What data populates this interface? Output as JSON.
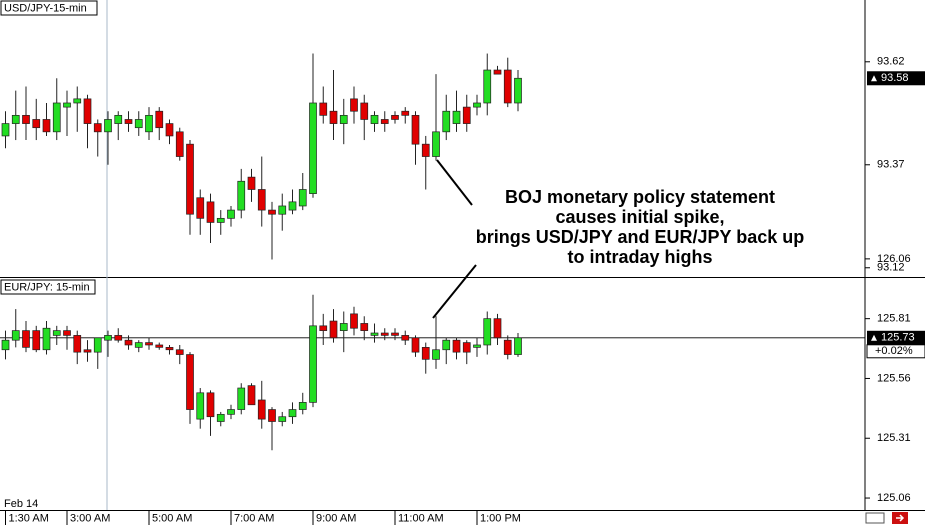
{
  "chart_data": [
    {
      "type": "candlestick",
      "title": "USD/JPY-15-min",
      "ylim": [
        93.1,
        93.77
      ],
      "yticks": [
        93.12,
        93.37,
        93.62
      ],
      "up_color": "#22dd22",
      "down_color": "#e00000",
      "last": 93.58,
      "price_line": false,
      "open": [
        93.44,
        93.47,
        93.49,
        93.48,
        93.48,
        93.45,
        93.51,
        93.52,
        93.53,
        93.47,
        93.45,
        93.47,
        93.48,
        93.46,
        93.45,
        93.5,
        93.47,
        93.45,
        93.42,
        93.29,
        93.28,
        93.23,
        93.24,
        93.26,
        93.34,
        93.31,
        93.26,
        93.25,
        93.26,
        93.27,
        93.3,
        93.52,
        93.5,
        93.47,
        93.53,
        93.52,
        93.47,
        93.48,
        93.49,
        93.5,
        93.49,
        93.42,
        93.39,
        93.45,
        93.47,
        93.51,
        93.51,
        93.52,
        93.6,
        93.6,
        93.52
      ],
      "high": [
        93.5,
        93.55,
        93.56,
        93.53,
        93.52,
        93.58,
        93.55,
        93.56,
        93.54,
        93.48,
        93.5,
        93.5,
        93.5,
        93.5,
        93.51,
        93.51,
        93.48,
        93.46,
        93.43,
        93.31,
        93.3,
        93.26,
        93.27,
        93.36,
        93.36,
        93.39,
        93.28,
        93.3,
        93.31,
        93.35,
        93.64,
        93.56,
        93.6,
        93.53,
        93.56,
        93.54,
        93.5,
        93.5,
        93.5,
        93.51,
        93.5,
        93.44,
        93.59,
        93.54,
        93.55,
        93.54,
        93.54,
        93.64,
        93.61,
        93.63,
        93.6
      ],
      "low": [
        93.41,
        93.43,
        93.43,
        93.43,
        93.44,
        93.43,
        93.44,
        93.45,
        93.41,
        93.39,
        93.37,
        93.43,
        93.45,
        93.44,
        93.43,
        93.43,
        93.42,
        93.38,
        93.2,
        93.2,
        93.18,
        93.2,
        93.22,
        93.24,
        93.28,
        93.22,
        93.14,
        93.21,
        93.25,
        93.26,
        93.29,
        93.47,
        93.43,
        93.42,
        93.47,
        93.43,
        93.45,
        93.45,
        93.47,
        93.47,
        93.37,
        93.31,
        93.38,
        93.43,
        93.45,
        93.45,
        93.49,
        93.49,
        93.59,
        93.51,
        93.5
      ],
      "close": [
        93.47,
        93.49,
        93.47,
        93.46,
        93.45,
        93.52,
        93.52,
        93.53,
        93.47,
        93.45,
        93.48,
        93.49,
        93.47,
        93.48,
        93.49,
        93.46,
        93.44,
        93.39,
        93.25,
        93.24,
        93.23,
        93.24,
        93.26,
        93.33,
        93.31,
        93.26,
        93.25,
        93.27,
        93.28,
        93.31,
        93.52,
        93.49,
        93.47,
        93.49,
        93.5,
        93.48,
        93.49,
        93.47,
        93.48,
        93.49,
        93.42,
        93.39,
        93.45,
        93.5,
        93.5,
        93.47,
        93.52,
        93.6,
        93.59,
        93.52,
        93.58
      ]
    },
    {
      "type": "candlestick",
      "title": "EUR/JPY: 15-min",
      "ylim": [
        125.01,
        125.98
      ],
      "yticks": [
        125.06,
        125.31,
        125.56,
        125.81,
        126.06
      ],
      "up_color": "#22dd22",
      "down_color": "#e00000",
      "last": 125.73,
      "change": "+0.02%",
      "price_line": true,
      "date_label": "Feb 14",
      "categories": [
        "1:30 AM",
        null,
        null,
        null,
        null,
        null,
        "3:00 AM",
        null,
        null,
        null,
        null,
        null,
        null,
        null,
        "5:00 AM",
        null,
        null,
        null,
        null,
        null,
        null,
        null,
        "7:00 AM",
        null,
        null,
        null,
        null,
        null,
        null,
        null,
        "9:00 AM",
        null,
        null,
        null,
        null,
        null,
        null,
        null,
        "11:00 AM",
        null,
        null,
        null,
        null,
        null,
        null,
        null,
        "1:00 PM",
        null,
        null,
        null,
        null
      ],
      "open": [
        125.68,
        125.72,
        125.76,
        125.76,
        125.68,
        125.74,
        125.76,
        125.74,
        125.68,
        125.67,
        125.72,
        125.74,
        125.72,
        125.69,
        125.71,
        125.7,
        125.69,
        125.68,
        125.66,
        125.39,
        125.5,
        125.38,
        125.41,
        125.43,
        125.53,
        125.47,
        125.43,
        125.38,
        125.4,
        125.43,
        125.46,
        125.78,
        125.8,
        125.76,
        125.83,
        125.79,
        125.74,
        125.75,
        125.75,
        125.74,
        125.73,
        125.69,
        125.64,
        125.68,
        125.72,
        125.71,
        125.69,
        125.7,
        125.81,
        125.72,
        125.66
      ],
      "high": [
        125.76,
        125.85,
        125.8,
        125.78,
        125.8,
        125.78,
        125.78,
        125.76,
        125.72,
        125.73,
        125.76,
        125.77,
        125.74,
        125.72,
        125.73,
        125.71,
        125.7,
        125.7,
        125.67,
        125.52,
        125.51,
        125.42,
        125.45,
        125.54,
        125.54,
        125.55,
        125.44,
        125.42,
        125.46,
        125.5,
        125.91,
        125.83,
        125.85,
        125.84,
        125.86,
        125.82,
        125.79,
        125.77,
        125.77,
        125.76,
        125.74,
        125.71,
        125.82,
        125.73,
        125.73,
        125.72,
        125.73,
        125.84,
        125.83,
        125.74,
        125.75
      ],
      "low": [
        125.64,
        125.69,
        125.67,
        125.67,
        125.66,
        125.7,
        125.68,
        125.62,
        125.63,
        125.6,
        125.65,
        125.71,
        125.68,
        125.67,
        125.68,
        125.68,
        125.66,
        125.62,
        125.37,
        125.35,
        125.32,
        125.36,
        125.39,
        125.41,
        125.45,
        125.35,
        125.26,
        125.36,
        125.37,
        125.41,
        125.44,
        125.7,
        125.71,
        125.67,
        125.74,
        125.72,
        125.71,
        125.72,
        125.72,
        125.7,
        125.65,
        125.58,
        125.6,
        125.62,
        125.64,
        125.62,
        125.65,
        125.66,
        125.7,
        125.64,
        125.65
      ],
      "close": [
        125.72,
        125.76,
        125.69,
        125.68,
        125.77,
        125.76,
        125.74,
        125.67,
        125.67,
        125.73,
        125.74,
        125.72,
        125.7,
        125.71,
        125.7,
        125.69,
        125.68,
        125.66,
        125.43,
        125.5,
        125.4,
        125.41,
        125.43,
        125.52,
        125.45,
        125.39,
        125.38,
        125.4,
        125.43,
        125.46,
        125.78,
        125.76,
        125.73,
        125.79,
        125.77,
        125.76,
        125.75,
        125.74,
        125.74,
        125.72,
        125.67,
        125.64,
        125.68,
        125.72,
        125.67,
        125.67,
        125.7,
        125.81,
        125.73,
        125.66,
        125.73
      ]
    }
  ],
  "annotation": [
    "BOJ monetary policy statement",
    "causes initial spike,",
    "brings USD/JPY and EUR/JPY back up",
    "to intraday highs"
  ]
}
